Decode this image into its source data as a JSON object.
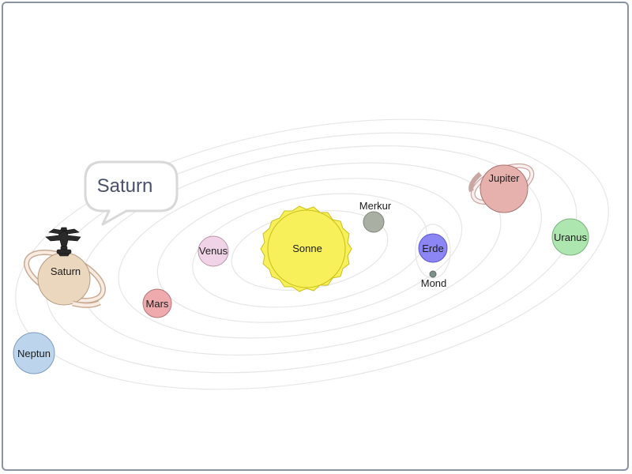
{
  "bubble": {
    "text": "Saturn"
  },
  "bodies": {
    "sonne": {
      "label": "Sonne",
      "color": "#f7f05a",
      "stroke": "#c9bf1a"
    },
    "merkur": {
      "label": "Merkur",
      "color": "#a9afa2",
      "stroke": "#7f857a"
    },
    "venus": {
      "label": "Venus",
      "color": "#f1d3e8",
      "stroke": "#b995a8"
    },
    "erde": {
      "label": "Erde",
      "color": "#8c86f5",
      "stroke": "#5a55c9"
    },
    "mond": {
      "label": "Mond",
      "color": "#7f8f8c",
      "stroke": "#5e6b68"
    },
    "mars": {
      "label": "Mars",
      "color": "#eeaaad",
      "stroke": "#b6767a"
    },
    "jupiter": {
      "label": "Jupiter",
      "color": "#e6b0ad",
      "stroke": "#a87471"
    },
    "saturn": {
      "label": "Saturn",
      "color": "#ead7be",
      "stroke": "#b59c82"
    },
    "uranus": {
      "label": "Uranus",
      "color": "#aee6b0",
      "stroke": "#76b378"
    },
    "neptun": {
      "label": "Neptun",
      "color": "#bcd5ec",
      "stroke": "#7b9cbf"
    }
  },
  "colors": {
    "orbit": "#e6e6e6",
    "border": "#8a93a3",
    "bubble_border": "#d8d8d8"
  }
}
